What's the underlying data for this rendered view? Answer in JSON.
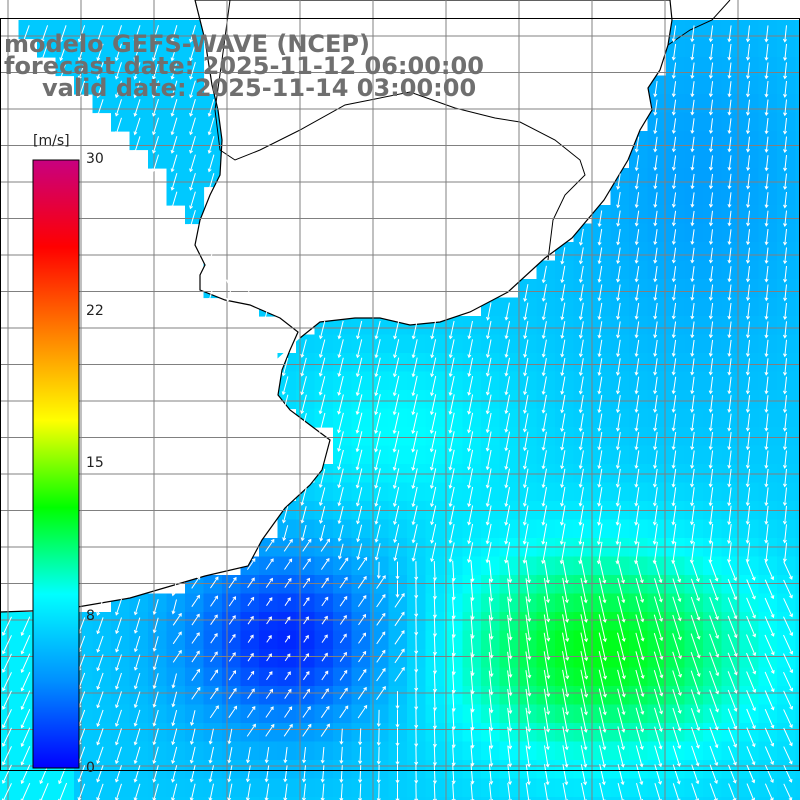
{
  "header": {
    "line1": "modelo GEFS-WAVE (NCEP)",
    "line2": "forecast date: 2025-11-12 06:00:00",
    "line3": "valid date: 2025-11-14 03:00:00"
  },
  "colorbar": {
    "unit": "[m/s]",
    "ticks": [
      "30",
      "22",
      "15",
      "8",
      "0"
    ],
    "tick_values": [
      30,
      22,
      15,
      8,
      0
    ],
    "range": [
      0,
      30
    ],
    "colors": [
      "#0000ff",
      "#0090ff",
      "#00ffff",
      "#00ff00",
      "#ffff00",
      "#ff8000",
      "#ff0000",
      "#c80080"
    ]
  },
  "map": {
    "field": "wind speed",
    "land_color": "#ffffff",
    "grid_color": "#808080",
    "vector_color": "#ffffff",
    "coast_color": "#000000"
  }
}
